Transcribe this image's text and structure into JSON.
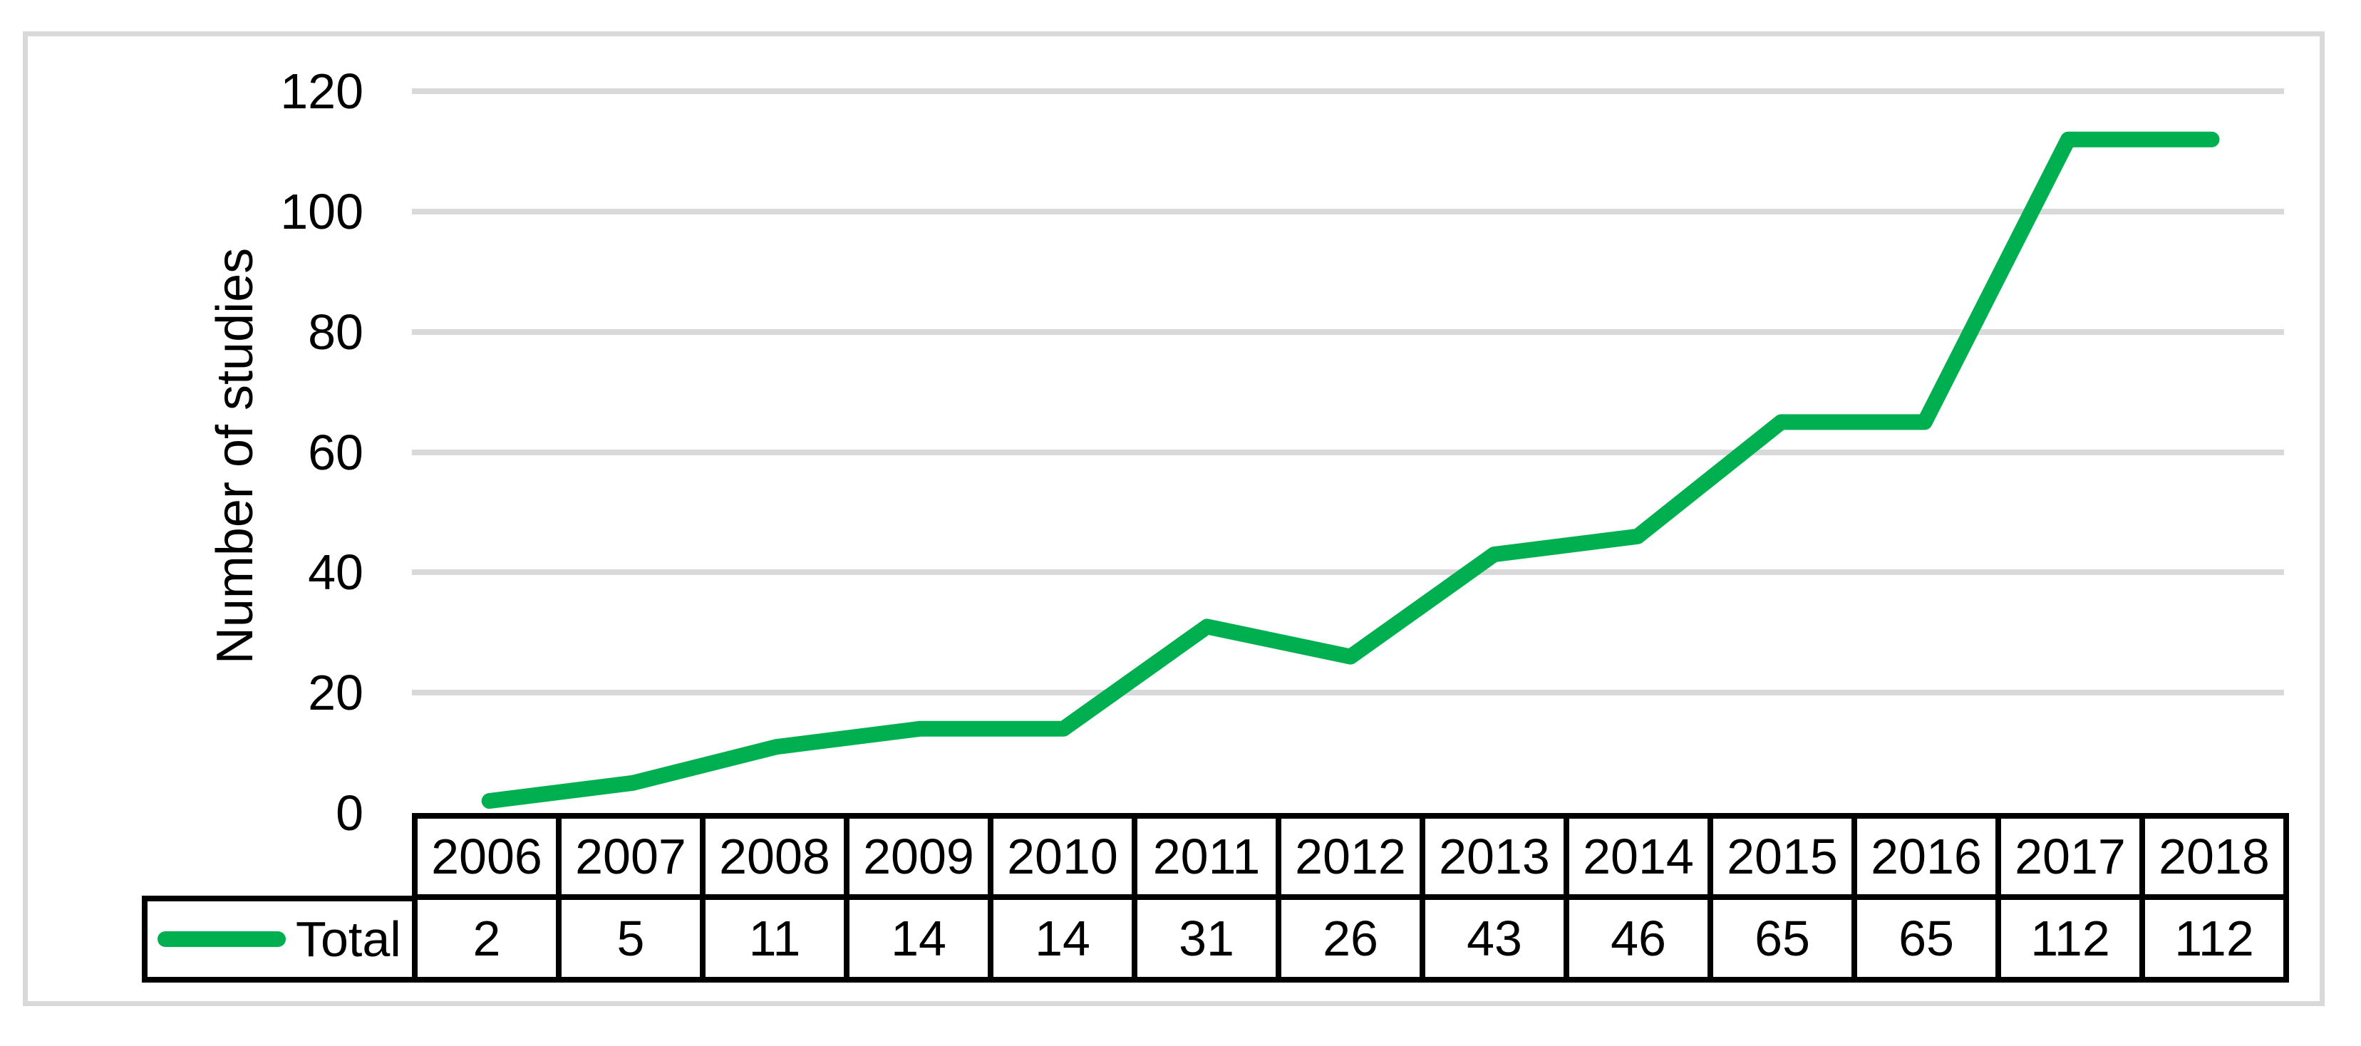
{
  "chart_data": {
    "type": "line",
    "categories": [
      "2006",
      "2007",
      "2008",
      "2009",
      "2010",
      "2011",
      "2012",
      "2013",
      "2014",
      "2015",
      "2016",
      "2017",
      "2018"
    ],
    "series": [
      {
        "name": "Total",
        "values": [
          2,
          5,
          11,
          14,
          14,
          31,
          26,
          43,
          46,
          65,
          65,
          112,
          112
        ]
      }
    ],
    "title": "",
    "xlabel": "",
    "ylabel": "Number of studies",
    "ylim": [
      0,
      120
    ],
    "yticks": [
      0,
      20,
      40,
      60,
      80,
      100,
      120
    ],
    "grid": "horizontal",
    "legend_position": "data-table-left",
    "data_table_shown": true,
    "colors": {
      "line": "#00B050",
      "gridline": "#d9d9d9",
      "table_border": "#000000",
      "frame_border": "#d9d9d9",
      "text": "#000000",
      "background": "#ffffff"
    }
  }
}
